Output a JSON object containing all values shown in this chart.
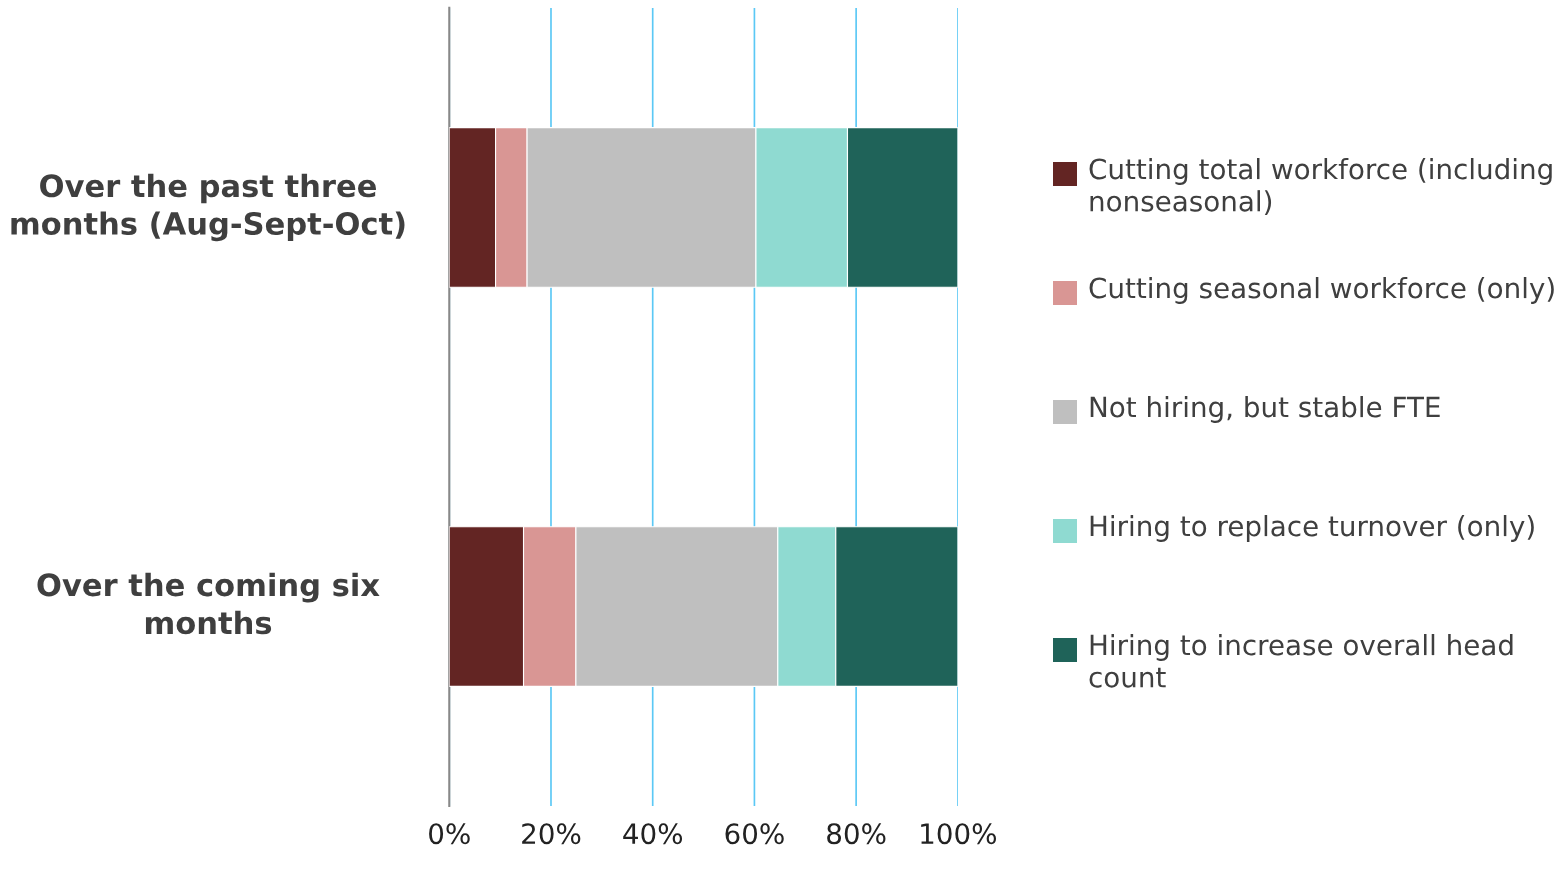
{
  "chart_data": {
    "type": "bar",
    "orientation": "horizontal",
    "stacked": true,
    "categories": [
      "Over the past three months (Aug-Sept-Oct)",
      "Over the coming six months"
    ],
    "series": [
      {
        "name": "Cutting total workforce (including nonseasonal)",
        "color": "#632523",
        "values": [
          9.1,
          14.6
        ]
      },
      {
        "name": "Cutting seasonal workforce (only)",
        "color": "#d99694",
        "values": [
          6.2,
          10.3
        ]
      },
      {
        "name": "Not hiring, but stable FTE",
        "color": "#bfbfbf",
        "values": [
          45.0,
          39.7
        ]
      },
      {
        "name": "Hiring to replace turnover (only)",
        "color": "#8fdad1",
        "values": [
          18.0,
          11.4
        ]
      },
      {
        "name": "Hiring to increase overall head count",
        "color": "#1f6359",
        "values": [
          21.7,
          24.0
        ]
      }
    ],
    "xlim": [
      0,
      100
    ],
    "xticks": [
      {
        "value": 0,
        "label": "0%"
      },
      {
        "value": 20,
        "label": "20%"
      },
      {
        "value": 40,
        "label": "40%"
      },
      {
        "value": 60,
        "label": "60%"
      },
      {
        "value": 80,
        "label": "80%"
      },
      {
        "value": 100,
        "label": "100%"
      }
    ],
    "grid": "x",
    "legend": "right"
  }
}
